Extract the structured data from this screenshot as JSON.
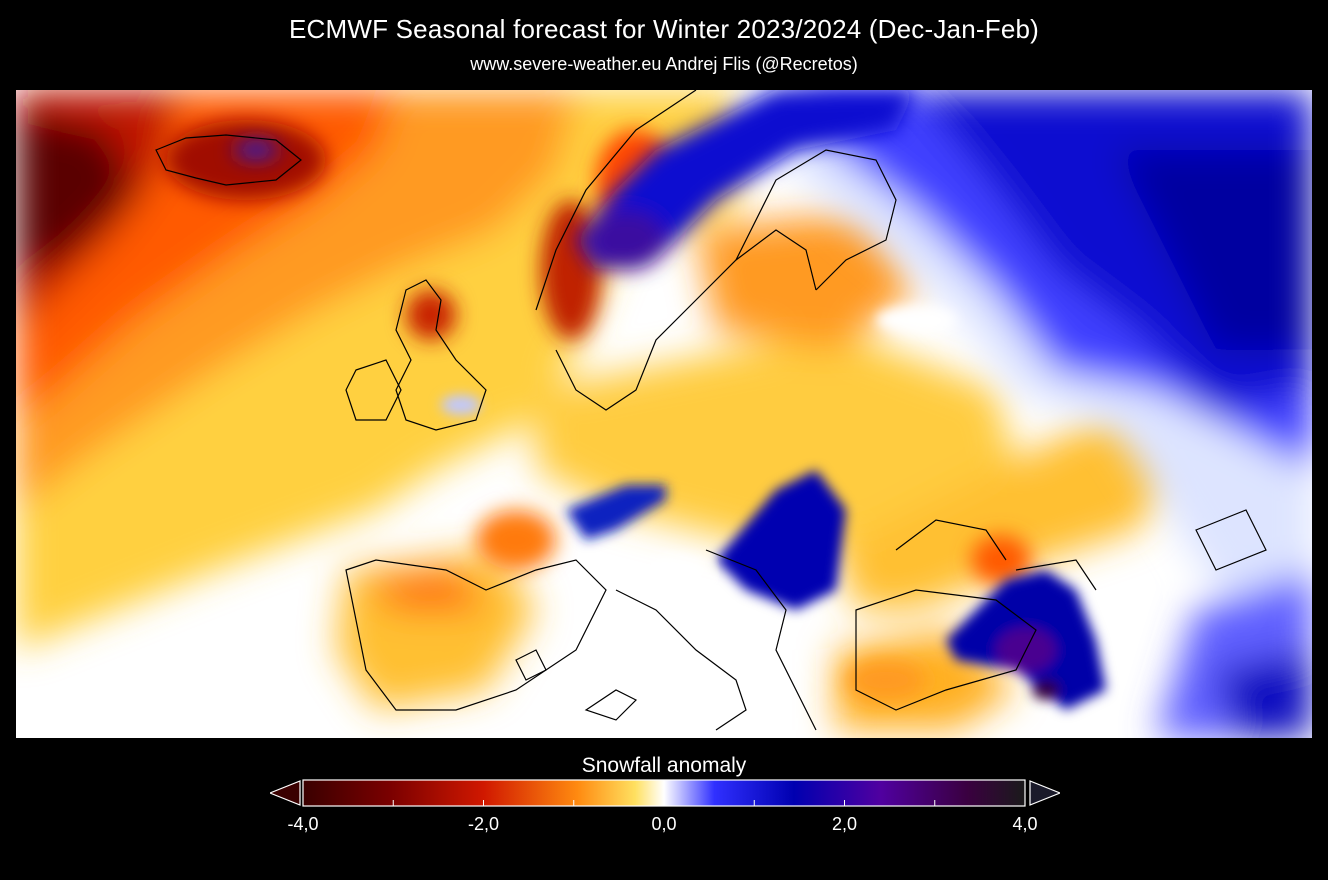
{
  "header": {
    "title": "ECMWF Seasonal forecast for Winter 2023/2024 (Dec-Jan-Feb)",
    "subtitle": "www.severe-weather.eu  Andrej Flis (@Recretos)"
  },
  "map": {
    "region": "Europe",
    "variable": "Snowfall anomaly",
    "palette": {
      "strong_negative": "#4a0000",
      "negative": "#ff4400",
      "weak_negative": "#ffd040",
      "neutral": "#ffffff",
      "weak_positive": "#3030ff",
      "positive": "#0000b0",
      "strong_positive": "#5a0090"
    }
  },
  "colorbar": {
    "title": "Snowfall anomaly",
    "min": -4.0,
    "max": 4.0,
    "ticks": [
      "-4,0",
      "-2,0",
      "0,0",
      "2,0",
      "4,0"
    ],
    "extend": "both"
  }
}
